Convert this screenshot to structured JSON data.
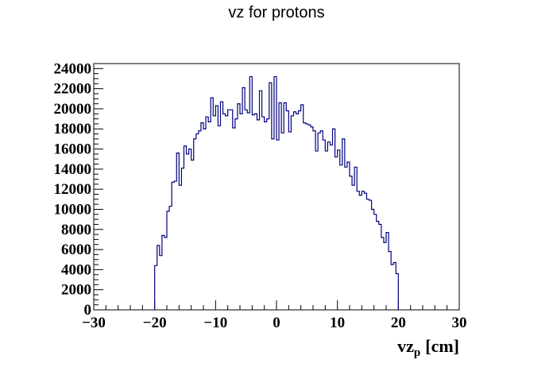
{
  "chart_data": {
    "type": "histogram",
    "title": "vz for protons",
    "xlabel_main": "vz",
    "xlabel_sub": "p",
    "xlabel_unit": "[cm]",
    "ylabel": "",
    "xlim": [
      -30,
      30
    ],
    "ylim": [
      0,
      24500
    ],
    "x_ticks": [
      -30,
      -20,
      -10,
      0,
      10,
      20,
      30
    ],
    "x_tick_labels": [
      "−30",
      "−20",
      "−10",
      "0",
      "10",
      "20",
      "30"
    ],
    "y_ticks": [
      0,
      2000,
      4000,
      6000,
      8000,
      10000,
      12000,
      14000,
      16000,
      18000,
      20000,
      22000,
      24000
    ],
    "y_tick_labels": [
      "0",
      "2000",
      "4000",
      "6000",
      "8000",
      "10000",
      "12000",
      "14000",
      "16000",
      "18000",
      "20000",
      "22000",
      "24000"
    ],
    "grid": false,
    "line_color": "#000080",
    "bin_width": 0.4,
    "bins_start": -20,
    "values": [
      4400,
      6400,
      5400,
      7400,
      7200,
      9800,
      10300,
      12700,
      12800,
      15600,
      12400,
      14100,
      16300,
      15500,
      16000,
      14900,
      17000,
      17500,
      17800,
      18600,
      18000,
      19200,
      18700,
      21100,
      19300,
      20300,
      18300,
      20700,
      19500,
      19300,
      19900,
      19900,
      18100,
      19000,
      20500,
      19500,
      22100,
      19900,
      19600,
      23200,
      19400,
      19500,
      18900,
      21800,
      19200,
      18700,
      19000,
      22600,
      17000,
      23200,
      16900,
      20600,
      17600,
      20600,
      19800,
      17700,
      19300,
      19700,
      19500,
      19800,
      20400,
      18600,
      18500,
      18400,
      18200,
      17800,
      15800,
      17600,
      17800,
      16900,
      15800,
      16700,
      16400,
      18000,
      15200,
      15900,
      14400,
      17000,
      14200,
      14700,
      13300,
      12400,
      14200,
      11800,
      11400,
      11800,
      11600,
      11000,
      10900,
      10000,
      9500,
      8800,
      8500,
      7200,
      6700,
      7700,
      5800,
      4500,
      4700,
      3600
    ]
  }
}
